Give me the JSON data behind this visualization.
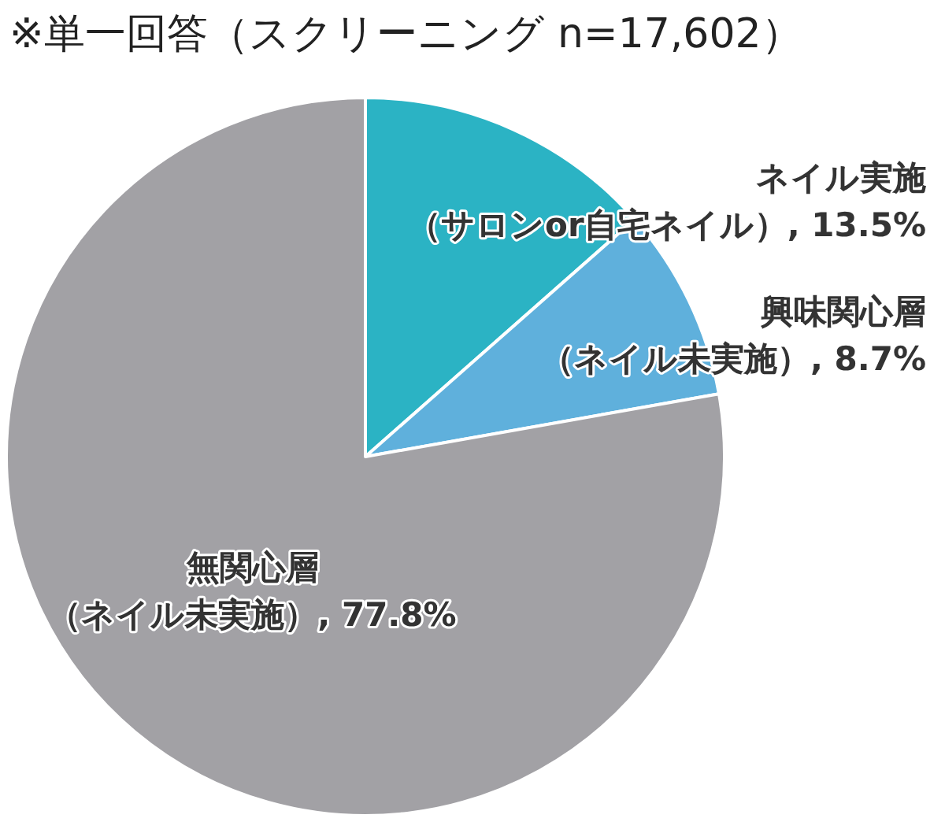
{
  "chart_data": {
    "type": "pie",
    "title": "※単一回答（スクリーニング n=17,602）",
    "categories": [
      "ネイル実施（サロンor自宅ネイル）",
      "興味関心層（ネイル未実施）",
      "無関心層（ネイル未実施）"
    ],
    "values": [
      13.5,
      8.7,
      77.8
    ],
    "colors": [
      "#2bb3c4",
      "#5fb0dc",
      "#a2a1a5"
    ],
    "value_labels": [
      ", 13.5%",
      ", 8.7%",
      ", 77.8%"
    ]
  }
}
